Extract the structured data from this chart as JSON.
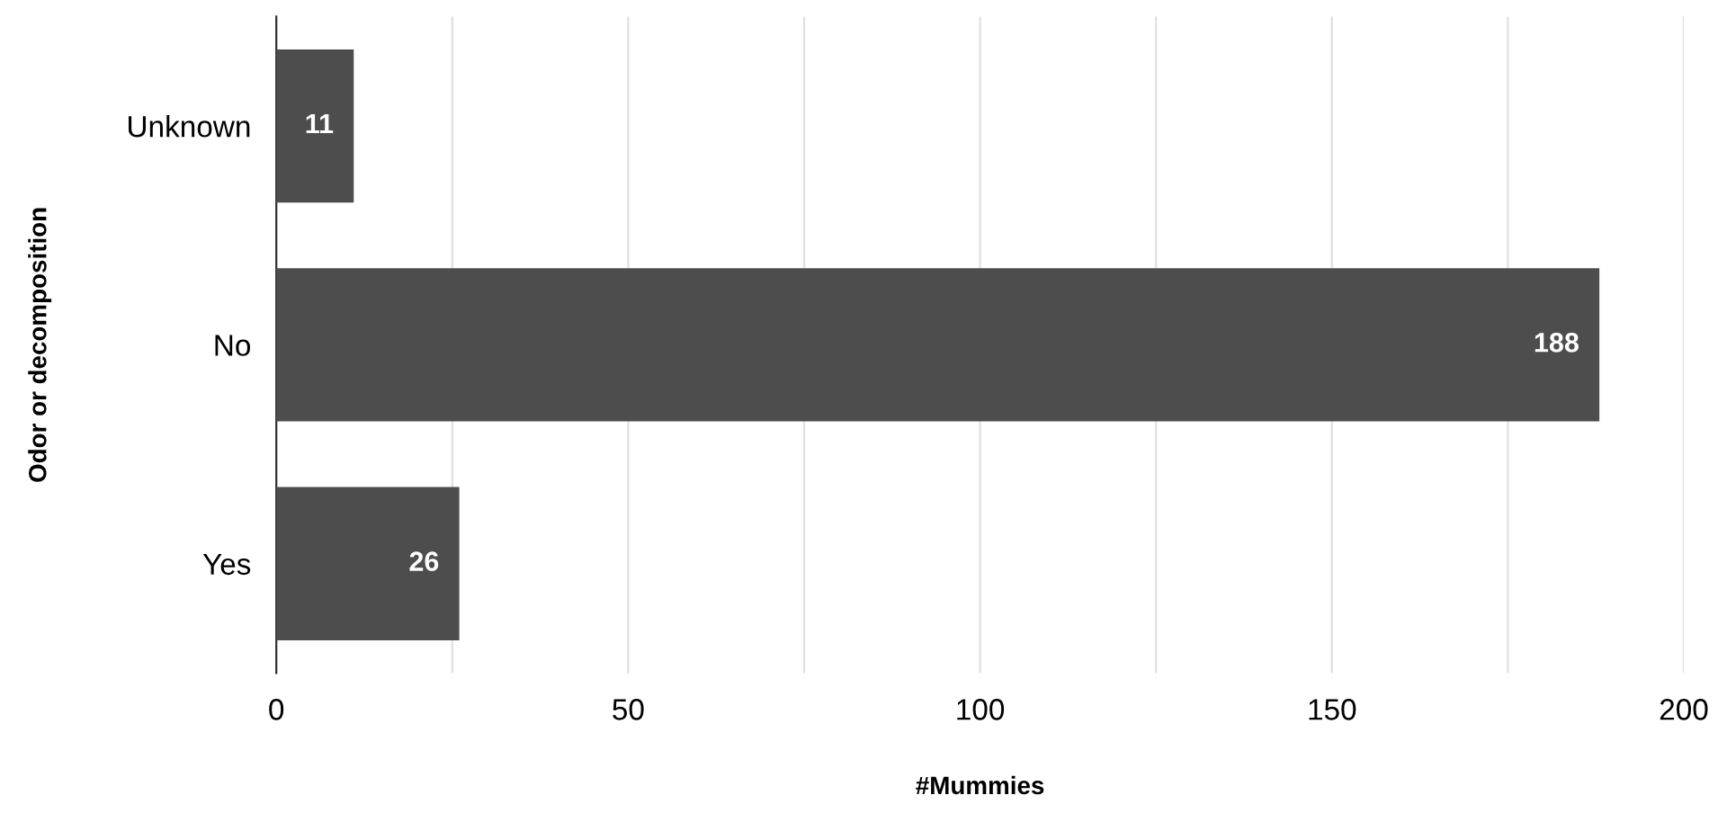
{
  "chart_data": {
    "type": "bar",
    "orientation": "horizontal",
    "xlabel": "#Mummies",
    "ylabel": "Odor or decomposition",
    "categories": [
      "Unknown",
      "No",
      "Yes"
    ],
    "series": [
      {
        "color": "#4d4d4d",
        "values": [
          11,
          188,
          26
        ]
      }
    ],
    "xlim": [
      0,
      200
    ],
    "xticks": [
      0,
      {
        "value": 25,
        "label": null
      },
      50,
      {
        "value": 75,
        "label": null
      },
      100,
      {
        "value": 125,
        "label": null
      },
      150,
      {
        "value": 175,
        "label": null
      },
      200
    ],
    "grid": "x",
    "data_labels": true,
    "legend": false
  }
}
